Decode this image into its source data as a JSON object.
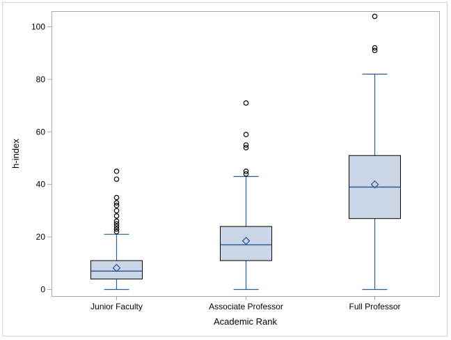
{
  "chart_data": {
    "type": "box",
    "title": "",
    "xlabel": "Academic Rank",
    "ylabel": "h-index",
    "ylim": [
      -2,
      106
    ],
    "yticks": [
      0,
      20,
      40,
      60,
      80,
      100
    ],
    "grid": false,
    "categories": [
      "Junior Faculty",
      "Associate Professor",
      "Full Professor"
    ],
    "boxes": [
      {
        "category": "Junior Faculty",
        "whisker_low": 0,
        "q1": 4,
        "median": 7,
        "mean": 8.2,
        "q3": 11,
        "whisker_high": 21,
        "outliers": [
          22,
          23,
          24,
          25,
          26,
          28,
          30,
          32,
          33,
          35,
          42,
          45
        ]
      },
      {
        "category": "Associate Professor",
        "whisker_low": 0,
        "q1": 11,
        "median": 17,
        "mean": 18.5,
        "q3": 24,
        "whisker_high": 43,
        "outliers": [
          44,
          45,
          54,
          55,
          59,
          71
        ]
      },
      {
        "category": "Full Professor",
        "whisker_low": 0,
        "q1": 27,
        "median": 39,
        "mean": 40,
        "q3": 51,
        "whisker_high": 82,
        "outliers": [
          91,
          92,
          104
        ]
      }
    ],
    "colors": {
      "box_fill": "#cad5e5",
      "box_edge": "#000000",
      "whisker": "#2a5d9a",
      "median": "#2a5d9a",
      "mean_marker": "#2a5d9a",
      "axis": "#a9a9a9"
    }
  }
}
